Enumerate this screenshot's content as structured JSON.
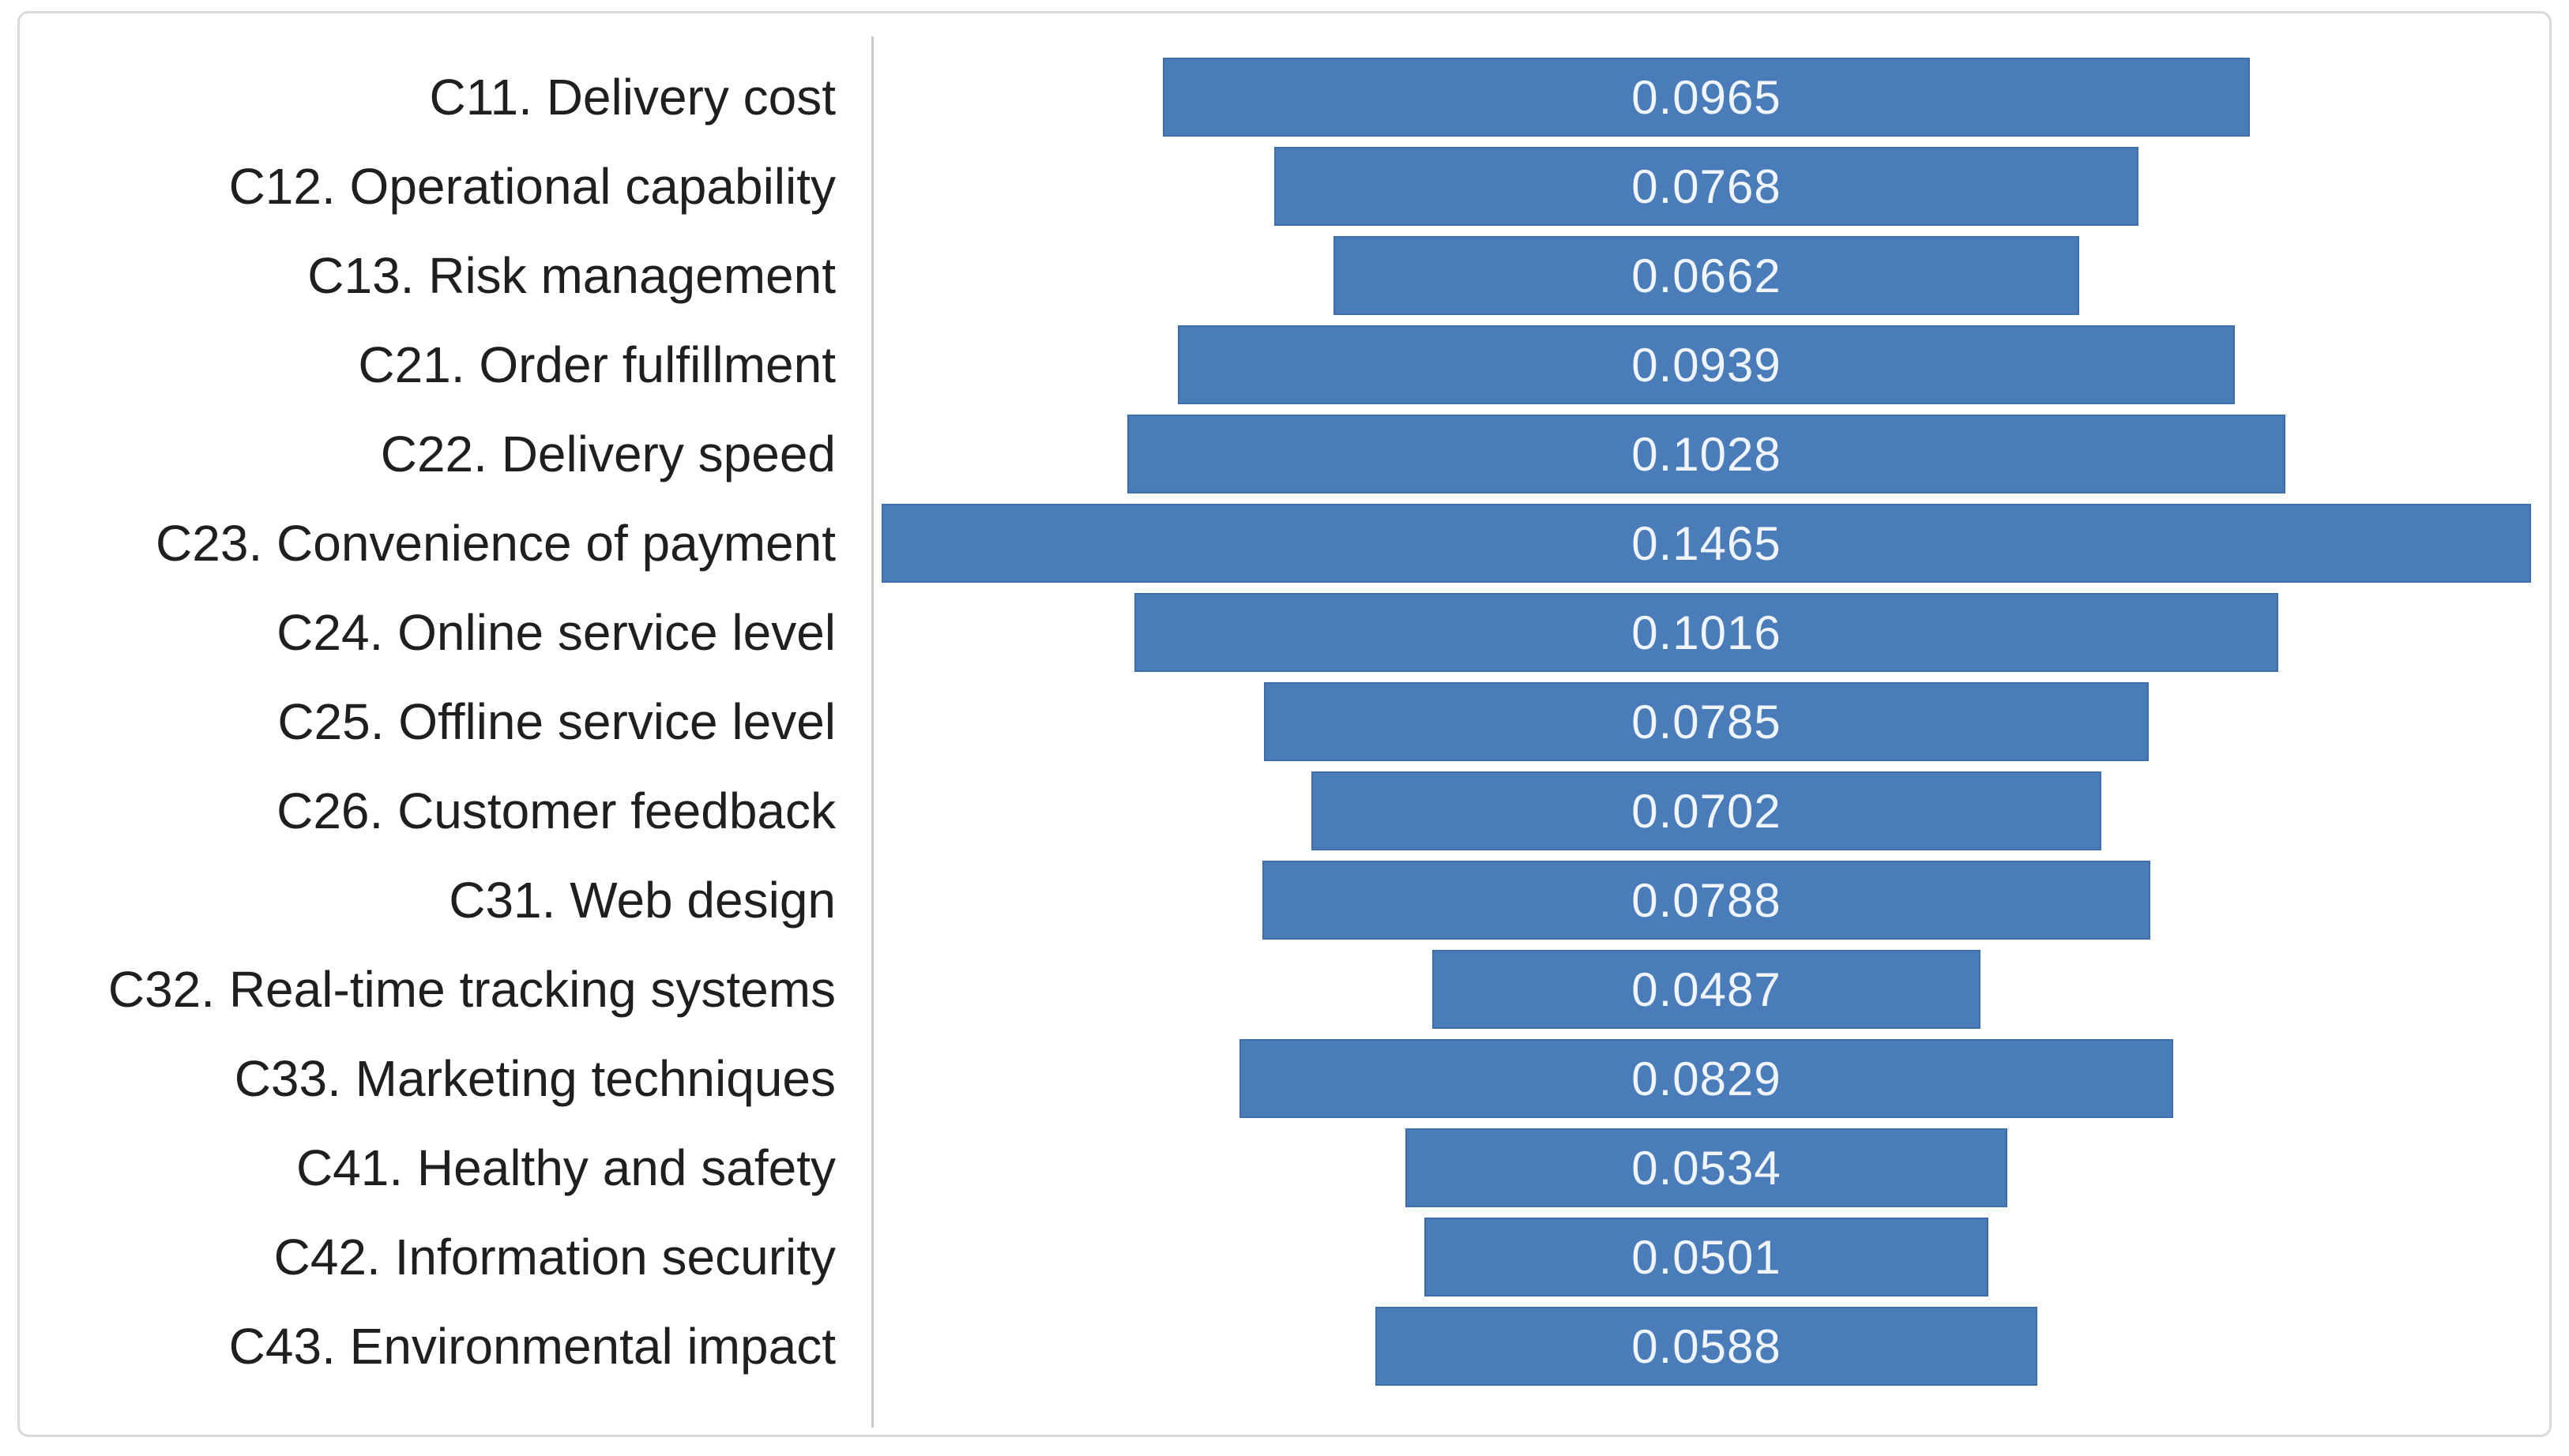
{
  "figure": {
    "frame_border_color": "#d9d9d9",
    "background_color": "#ffffff"
  },
  "chart_data": {
    "type": "bar",
    "subtype": "horizontal-centered-funnel",
    "title": "",
    "xlabel": "",
    "ylabel": "",
    "grid": false,
    "legend": "none",
    "xlim": [
      0,
      0.148
    ],
    "categories": [
      "C11. Delivery cost",
      "C12. Operational capability",
      "C13. Risk management",
      "C21. Order fulfillment",
      "C22. Delivery speed",
      "C23. Convenience of payment",
      "C24. Online service level",
      "C25. Offline service level",
      "C26. Customer feedback",
      "C31. Web design",
      "C32. Real-time tracking systems",
      "C33. Marketing techniques",
      "C41. Healthy and safety",
      "C42. Information security",
      "C43. Environmental impact"
    ],
    "values": [
      0.0965,
      0.0768,
      0.0662,
      0.0939,
      0.1028,
      0.1465,
      0.1016,
      0.0785,
      0.0702,
      0.0788,
      0.0487,
      0.0829,
      0.0534,
      0.0501,
      0.0588
    ],
    "value_labels": [
      "0.0965",
      "0.0768",
      "0.0662",
      "0.0939",
      "0.1028",
      "0.1465",
      "0.1016",
      "0.0785",
      "0.0702",
      "0.0788",
      "0.0487",
      "0.0829",
      "0.0534",
      "0.0501",
      "0.0588"
    ],
    "bar_color": "#4a7cba",
    "bar_border_color": "#3f6fab",
    "value_label_color": "#eff5fb",
    "category_label_color": "#1f1f1f",
    "axis_line_color": "#c9c9c9"
  }
}
